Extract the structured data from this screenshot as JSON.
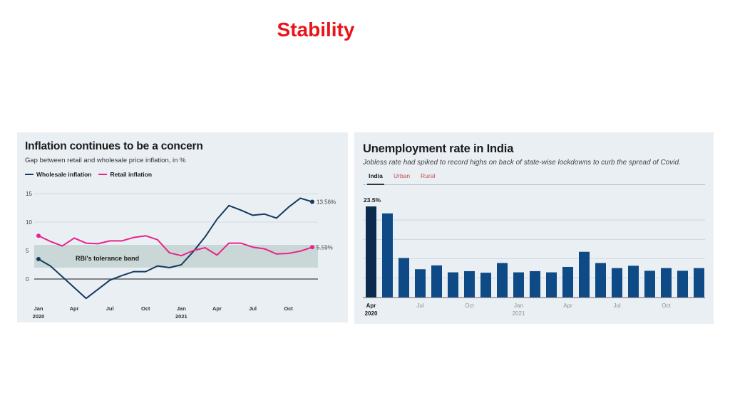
{
  "slide": {
    "title": "Stability"
  },
  "left_chart": {
    "title": "Inflation continues to be a concern",
    "subtitle": "Gap between retail and wholesale price inflation, in %",
    "legend": [
      "Wholesale inflation",
      "Retail inflation"
    ],
    "band_label": "RBI's tolerance band",
    "end_labels": [
      "13.56%",
      "5.59%"
    ]
  },
  "right_chart": {
    "title": "Unemployment rate in India",
    "subtitle": "Jobless rate had spiked to record highs on back of state-wise lockdowns to curb the spread of Covid.",
    "tabs": [
      "India",
      "Urban",
      "Rural"
    ],
    "active_tab": "India",
    "first_bar_label": "23.5%"
  },
  "colors": {
    "title_red": "#e8141b",
    "wholesale": "#163a5f",
    "retail": "#e8248c",
    "bar": "#0e4a85",
    "bar_highlight": "#0b2a4d",
    "band": "#c9d8d6",
    "panel_bg": "#eaeff4"
  },
  "chart_data": [
    {
      "type": "line",
      "title": "Inflation continues to be a concern",
      "subtitle": "Gap between retail and wholesale price inflation, in %",
      "ylim": [
        -5,
        15
      ],
      "yticks": [
        0,
        5,
        10,
        15
      ],
      "ytick_labels": [
        "0",
        "5",
        "10",
        "15"
      ],
      "x_tick_labels": [
        "Jan",
        "Apr",
        "Jul",
        "Oct",
        "Jan",
        "Apr",
        "Jul",
        "Oct"
      ],
      "x_year_labels": [
        "2020",
        "2021"
      ],
      "band": [
        2,
        6
      ],
      "grid": true,
      "legend_position": "top-left",
      "series": [
        {
          "name": "Wholesale inflation",
          "values": [
            3.5,
            2.3,
            0.4,
            -1.5,
            -3.4,
            -1.8,
            -0.2,
            0.6,
            1.3,
            1.3,
            2.3,
            2.0,
            2.5,
            4.8,
            7.4,
            10.5,
            12.9,
            12.1,
            11.2,
            11.4,
            10.7,
            12.6,
            14.2,
            13.56
          ]
        },
        {
          "name": "Retail inflation",
          "values": [
            7.6,
            6.6,
            5.8,
            7.2,
            6.3,
            6.2,
            6.7,
            6.7,
            7.3,
            7.6,
            6.9,
            4.6,
            4.1,
            5.0,
            5.5,
            4.2,
            6.3,
            6.3,
            5.6,
            5.3,
            4.4,
            4.5,
            4.9,
            5.59
          ]
        }
      ]
    },
    {
      "type": "bar",
      "title": "Unemployment rate in India",
      "subtitle": "Jobless rate had spiked to record highs on back of state-wise lockdowns to curb the spread of Covid.",
      "ylim": [
        0,
        25
      ],
      "grid": true,
      "x_tick_labels": [
        "Apr",
        "Jul",
        "Oct",
        "Jan",
        "Apr",
        "Jul",
        "Oct"
      ],
      "x_year_labels": [
        "2020",
        "2021"
      ],
      "values": [
        23.5,
        21.7,
        10.2,
        7.3,
        8.3,
        6.5,
        6.8,
        6.4,
        8.9,
        6.5,
        6.8,
        6.5,
        7.9,
        11.8,
        8.9,
        7.6,
        8.2,
        6.9,
        7.6,
        6.9,
        7.6
      ]
    }
  ]
}
